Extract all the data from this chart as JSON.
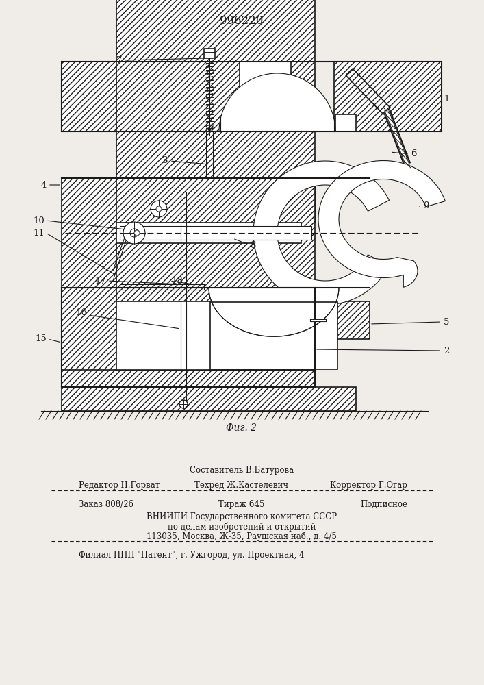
{
  "patent_number": "996220",
  "fig_caption": "Фиг. 2",
  "bg_color": "#f0ede8",
  "line_color": "#1a1a1a",
  "hatch_color": "#444444",
  "footer": {
    "line1_center": "Составитель В.Батурова",
    "line2_left": "Редактор Н.Горват",
    "line2_center": "Техред Ж.Кастелевич",
    "line2_right": "Корректор Г.Огар",
    "line3_left": "Заказ 808/26",
    "line3_center": "Тираж 645",
    "line3_right": "Подписное",
    "line4": "ВНИИПИ Государственного комитета СССР",
    "line5": "по делам изобретений и открытий",
    "line6": "113035, Москва, Ж-35, Раушская наб., д. 4/5",
    "line7": "Филиал ППП \"Патент\", г. Ужгород, ул. Проектная, 4"
  }
}
